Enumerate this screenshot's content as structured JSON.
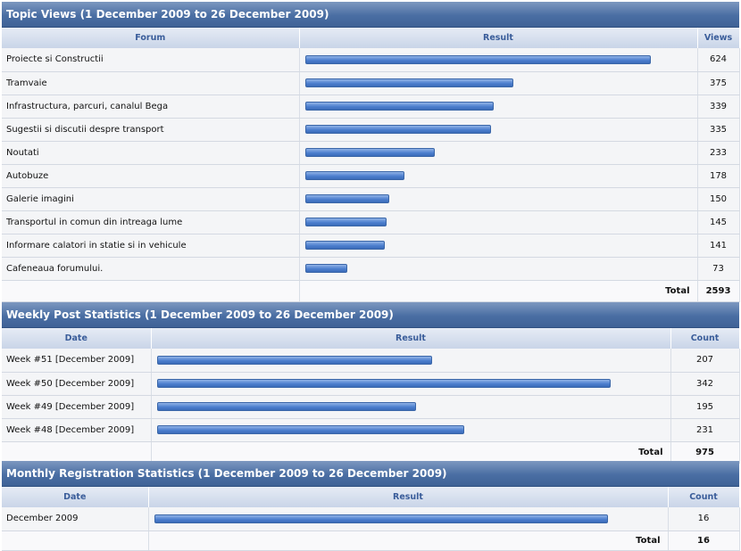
{
  "topic_views": {
    "title": "Topic Views (1 December 2009 to 26 December 2009)",
    "columns": {
      "forum": "Forum",
      "result": "Result",
      "views": "Views"
    },
    "max": 624,
    "rows": [
      {
        "forum": "Proiecte si Constructii",
        "views": "624",
        "value": 624
      },
      {
        "forum": "Tramvaie",
        "views": "375",
        "value": 375
      },
      {
        "forum": "Infrastructura, parcuri, canalul Bega",
        "views": "339",
        "value": 339
      },
      {
        "forum": "Sugestii si discutii despre transport",
        "views": "335",
        "value": 335
      },
      {
        "forum": "Noutati",
        "views": "233",
        "value": 233
      },
      {
        "forum": "Autobuze",
        "views": "178",
        "value": 178
      },
      {
        "forum": "Galerie imagini",
        "views": "150",
        "value": 150
      },
      {
        "forum": "Transportul in comun din intreaga lume",
        "views": "145",
        "value": 145
      },
      {
        "forum": "Informare calatori in statie si in vehicule",
        "views": "141",
        "value": 141
      },
      {
        "forum": "Cafeneaua forumului.",
        "views": "73",
        "value": 73
      }
    ],
    "total_label": "Total",
    "total": "2593"
  },
  "weekly_posts": {
    "title": "Weekly Post Statistics (1 December 2009 to 26 December 2009)",
    "columns": {
      "date": "Date",
      "result": "Result",
      "count": "Count"
    },
    "max": 342,
    "rows": [
      {
        "date": "Week #51 [December 2009]",
        "count": "207",
        "value": 207
      },
      {
        "date": "Week #50 [December 2009]",
        "count": "342",
        "value": 342
      },
      {
        "date": "Week #49 [December 2009]",
        "count": "195",
        "value": 195
      },
      {
        "date": "Week #48 [December 2009]",
        "count": "231",
        "value": 231
      }
    ],
    "total_label": "Total",
    "total": "975"
  },
  "monthly_registrations": {
    "title": "Monthly Registration Statistics (1 December 2009 to 26 December 2009)",
    "columns": {
      "date": "Date",
      "result": "Result",
      "count": "Count"
    },
    "max": 16,
    "rows": [
      {
        "date": "December 2009",
        "count": "16",
        "value": 16
      }
    ],
    "total_label": "Total",
    "total": "16"
  },
  "colors": {
    "header": "#4a6ea3",
    "bar": "#4d7fcf",
    "column_header_text": "#3a5d9a"
  }
}
